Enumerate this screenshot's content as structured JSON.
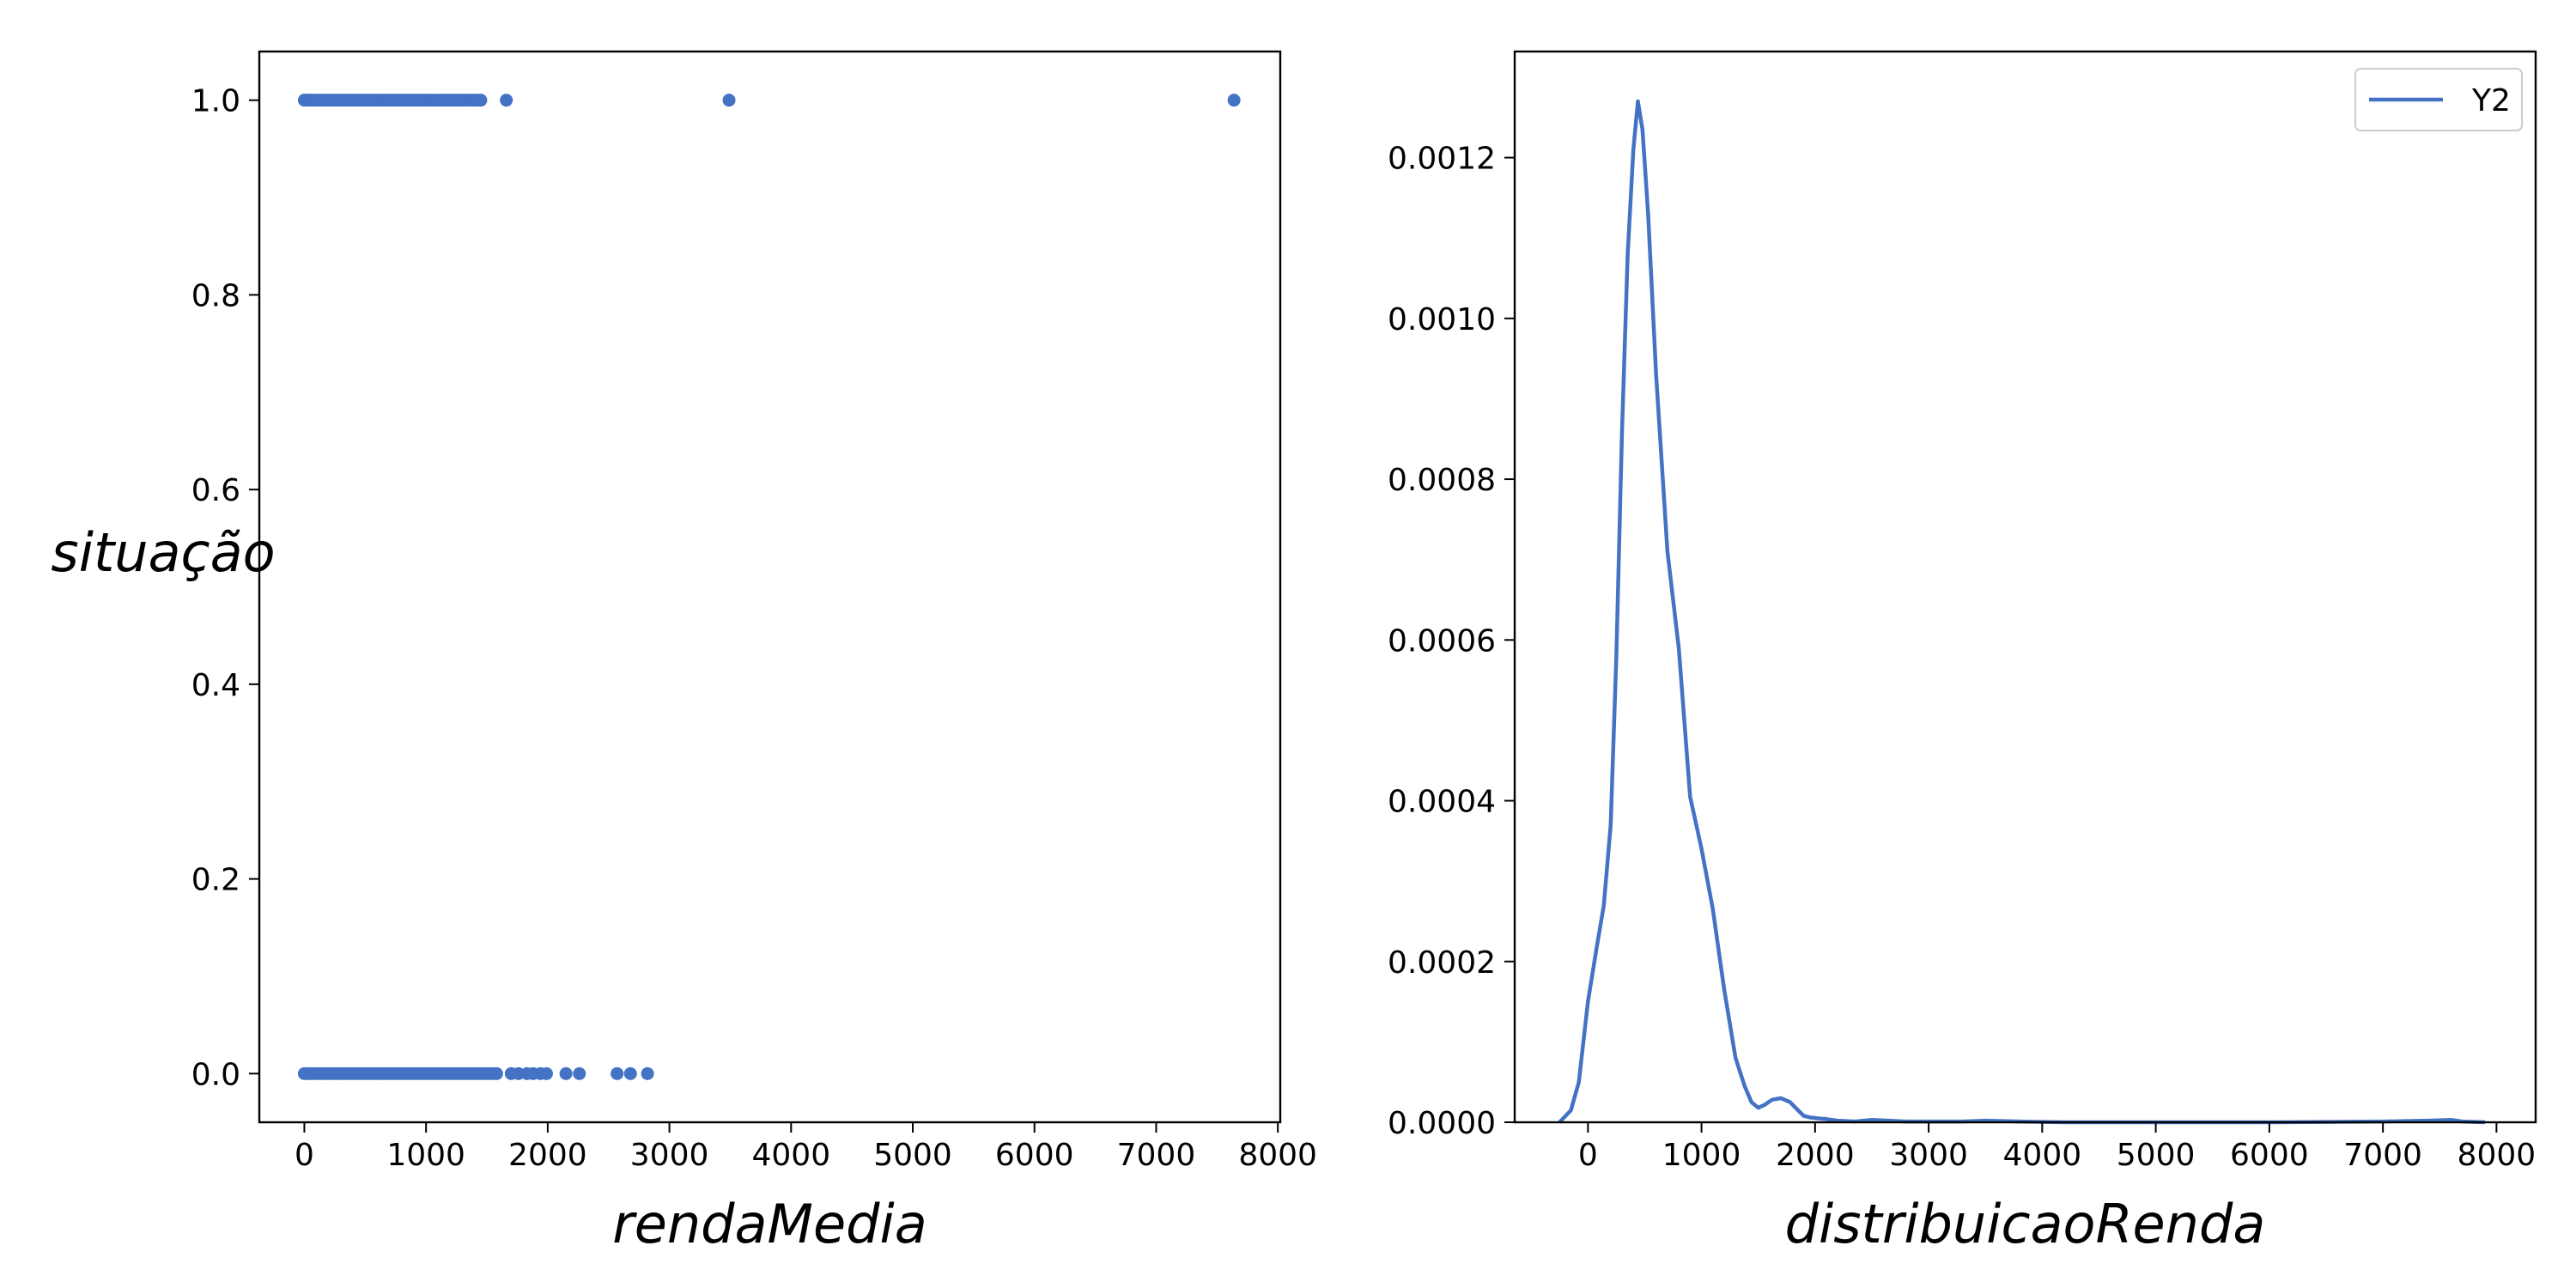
{
  "chart_data": [
    {
      "type": "scatter",
      "title": "",
      "xlabel": "rendaMedia",
      "ylabel": "situação",
      "xlim": [
        -370,
        8020
      ],
      "ylim": [
        -0.05,
        1.05
      ],
      "x_ticks": [
        0,
        1000,
        2000,
        3000,
        4000,
        5000,
        6000,
        7000,
        8000
      ],
      "x_tick_labels": [
        "0",
        "1000",
        "2000",
        "3000",
        "4000",
        "5000",
        "6000",
        "7000",
        "8000"
      ],
      "y_ticks": [
        0.0,
        0.2,
        0.4,
        0.6,
        0.8,
        1.0
      ],
      "y_tick_labels": [
        "0.0",
        "0.2",
        "0.4",
        "0.6",
        "0.8",
        "1.0"
      ],
      "grid": false,
      "color": "#4472c4",
      "series": [
        {
          "points": [
            [
              0,
              1
            ],
            [
              20,
              1
            ],
            [
              40,
              1
            ],
            [
              60,
              1
            ],
            [
              80,
              1
            ],
            [
              100,
              1
            ],
            [
              130,
              1
            ],
            [
              160,
              1
            ],
            [
              190,
              1
            ],
            [
              220,
              1
            ],
            [
              250,
              1
            ],
            [
              280,
              1
            ],
            [
              310,
              1
            ],
            [
              340,
              1
            ],
            [
              370,
              1
            ],
            [
              400,
              1
            ],
            [
              430,
              1
            ],
            [
              460,
              1
            ],
            [
              490,
              1
            ],
            [
              520,
              1
            ],
            [
              550,
              1
            ],
            [
              580,
              1
            ],
            [
              610,
              1
            ],
            [
              640,
              1
            ],
            [
              670,
              1
            ],
            [
              700,
              1
            ],
            [
              730,
              1
            ],
            [
              760,
              1
            ],
            [
              790,
              1
            ],
            [
              820,
              1
            ],
            [
              850,
              1
            ],
            [
              880,
              1
            ],
            [
              910,
              1
            ],
            [
              940,
              1
            ],
            [
              970,
              1
            ],
            [
              1000,
              1
            ],
            [
              1030,
              1
            ],
            [
              1060,
              1
            ],
            [
              1090,
              1
            ],
            [
              1120,
              1
            ],
            [
              1150,
              1
            ],
            [
              1180,
              1
            ],
            [
              1210,
              1
            ],
            [
              1240,
              1
            ],
            [
              1270,
              1
            ],
            [
              1300,
              1
            ],
            [
              1330,
              1
            ],
            [
              1360,
              1
            ],
            [
              1390,
              1
            ],
            [
              1420,
              1
            ],
            [
              1450,
              1
            ],
            [
              1660,
              1
            ],
            [
              3490,
              1
            ],
            [
              7640,
              1
            ],
            [
              0,
              0
            ],
            [
              25,
              0
            ],
            [
              50,
              0
            ],
            [
              80,
              0
            ],
            [
              110,
              0
            ],
            [
              140,
              0
            ],
            [
              170,
              0
            ],
            [
              200,
              0
            ],
            [
              230,
              0
            ],
            [
              260,
              0
            ],
            [
              290,
              0
            ],
            [
              320,
              0
            ],
            [
              350,
              0
            ],
            [
              380,
              0
            ],
            [
              410,
              0
            ],
            [
              440,
              0
            ],
            [
              470,
              0
            ],
            [
              500,
              0
            ],
            [
              530,
              0
            ],
            [
              560,
              0
            ],
            [
              590,
              0
            ],
            [
              620,
              0
            ],
            [
              650,
              0
            ],
            [
              680,
              0
            ],
            [
              710,
              0
            ],
            [
              740,
              0
            ],
            [
              770,
              0
            ],
            [
              800,
              0
            ],
            [
              830,
              0
            ],
            [
              860,
              0
            ],
            [
              890,
              0
            ],
            [
              920,
              0
            ],
            [
              950,
              0
            ],
            [
              980,
              0
            ],
            [
              1010,
              0
            ],
            [
              1040,
              0
            ],
            [
              1070,
              0
            ],
            [
              1100,
              0
            ],
            [
              1130,
              0
            ],
            [
              1160,
              0
            ],
            [
              1190,
              0
            ],
            [
              1220,
              0
            ],
            [
              1250,
              0
            ],
            [
              1280,
              0
            ],
            [
              1310,
              0
            ],
            [
              1340,
              0
            ],
            [
              1370,
              0
            ],
            [
              1400,
              0
            ],
            [
              1430,
              0
            ],
            [
              1460,
              0
            ],
            [
              1490,
              0
            ],
            [
              1520,
              0
            ],
            [
              1550,
              0
            ],
            [
              1580,
              0
            ],
            [
              1700,
              0
            ],
            [
              1760,
              0
            ],
            [
              1830,
              0
            ],
            [
              1880,
              0
            ],
            [
              1940,
              0
            ],
            [
              1990,
              0
            ],
            [
              2150,
              0
            ],
            [
              2260,
              0
            ],
            [
              2570,
              0
            ],
            [
              2680,
              0
            ],
            [
              2820,
              0
            ]
          ]
        }
      ]
    },
    {
      "type": "line",
      "title": "",
      "xlabel": "distribuicaoRenda",
      "ylabel": "",
      "xlim": [
        -645,
        8345
      ],
      "ylim": [
        0,
        0.001332
      ],
      "x_ticks": [
        0,
        1000,
        2000,
        3000,
        4000,
        5000,
        6000,
        7000,
        8000
      ],
      "x_tick_labels": [
        "0",
        "1000",
        "2000",
        "3000",
        "4000",
        "5000",
        "6000",
        "7000",
        "8000"
      ],
      "y_ticks": [
        0.0,
        0.0002,
        0.0004,
        0.0006,
        0.0008,
        0.001,
        0.0012
      ],
      "y_tick_labels": [
        "0.0000",
        "0.0002",
        "0.0004",
        "0.0006",
        "0.0008",
        "0.0010",
        "0.0012"
      ],
      "grid": false,
      "legend_position": "top-right",
      "color": "#4472c4",
      "series": [
        {
          "name": "Y2",
          "x": [
            -250,
            -150,
            -80,
            0,
            80,
            140,
            200,
            250,
            300,
            350,
            400,
            440,
            480,
            530,
            600,
            700,
            800,
            900,
            1000,
            1100,
            1200,
            1300,
            1380,
            1440,
            1500,
            1560,
            1620,
            1700,
            1780,
            1850,
            1900,
            1960,
            2020,
            2100,
            2200,
            2350,
            2500,
            2650,
            2800,
            3000,
            3300,
            3500,
            3800,
            4200,
            5000,
            6000,
            7000,
            7400,
            7600,
            7700,
            7900
          ],
          "y": [
            0,
            1.5e-05,
            5e-05,
            0.00015,
            0.00022,
            0.00027,
            0.00037,
            0.00058,
            0.00086,
            0.00108,
            0.00121,
            0.00127,
            0.001235,
            0.00113,
            0.00093,
            0.00071,
            0.00059,
            0.000405,
            0.00034,
            0.000265,
            0.000165,
            8e-05,
            4.5e-05,
            2.5e-05,
            1.8e-05,
            2.2e-05,
            2.8e-05,
            3e-05,
            2.5e-05,
            1.5e-05,
            8e-06,
            6e-06,
            5e-06,
            4e-06,
            2e-06,
            1e-06,
            3e-06,
            2e-06,
            1e-06,
            1e-06,
            1e-06,
            2e-06,
            1e-06,
            0,
            0,
            0,
            1e-06,
            2e-06,
            3e-06,
            1e-06,
            0
          ]
        }
      ]
    }
  ]
}
